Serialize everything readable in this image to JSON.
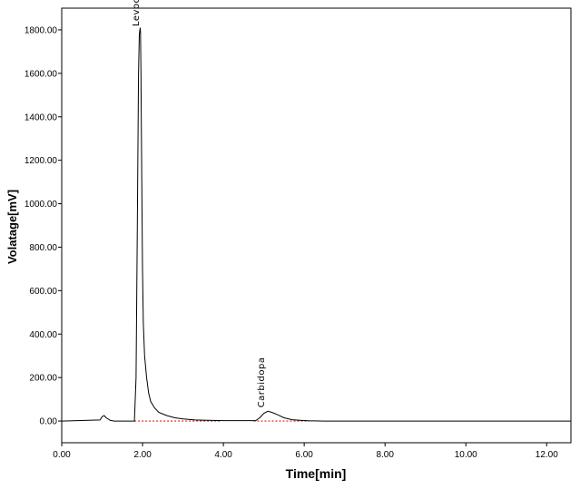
{
  "chart_data": {
    "type": "line",
    "title": "",
    "xlabel": "Time[min]",
    "ylabel": "Volatage[mV]",
    "xlim": [
      0,
      12.6
    ],
    "ylim": [
      -100,
      1900
    ],
    "x_ticks": [
      0,
      2,
      4,
      6,
      8,
      10,
      12
    ],
    "x_tick_labels": [
      "0.00",
      "2.00",
      "4.00",
      "6.00",
      "8.00",
      "10.00",
      "12.00"
    ],
    "y_ticks": [
      0,
      200,
      400,
      600,
      800,
      1000,
      1200,
      1400,
      1600,
      1800
    ],
    "y_tick_labels": [
      "0.00",
      "200.00",
      "400.00",
      "600.00",
      "800.00",
      "1000.00",
      "1200.00",
      "1400.00",
      "1600.00",
      "1800.00"
    ],
    "grid": false,
    "series": [
      {
        "x": [
          0,
          0.95,
          1.0,
          1.05,
          1.1,
          1.2,
          1.3,
          1.8,
          1.84,
          1.87,
          1.9,
          1.92,
          1.94,
          1.95,
          1.96,
          1.98,
          2.0,
          2.02,
          2.05,
          2.1,
          2.15,
          2.2,
          2.3,
          2.4,
          2.6,
          2.8,
          3.0,
          3.3,
          3.6,
          4.0,
          4.5,
          4.8,
          4.9,
          5.0,
          5.1,
          5.2,
          5.35,
          5.5,
          5.7,
          5.9,
          6.1,
          6.5,
          12.6
        ],
        "y": [
          0,
          5,
          20,
          25,
          15,
          3,
          0,
          0,
          200,
          900,
          1600,
          1780,
          1810,
          1790,
          1600,
          1100,
          700,
          450,
          300,
          200,
          130,
          90,
          60,
          40,
          25,
          15,
          10,
          5,
          3,
          2,
          2,
          2,
          15,
          35,
          45,
          40,
          28,
          15,
          6,
          3,
          1,
          0,
          0
        ]
      }
    ],
    "baselines": [
      {
        "x": [
          1.8,
          3.95
        ]
      },
      {
        "x": [
          4.75,
          6.2
        ]
      }
    ],
    "baseline_color": "#e8190f",
    "line_color": "#000000",
    "annotations": [
      {
        "text": "Levodopa",
        "x": 1.95,
        "y": 1800
      },
      {
        "text": "Carbidopa",
        "x": 5.05,
        "y": 45
      }
    ]
  }
}
